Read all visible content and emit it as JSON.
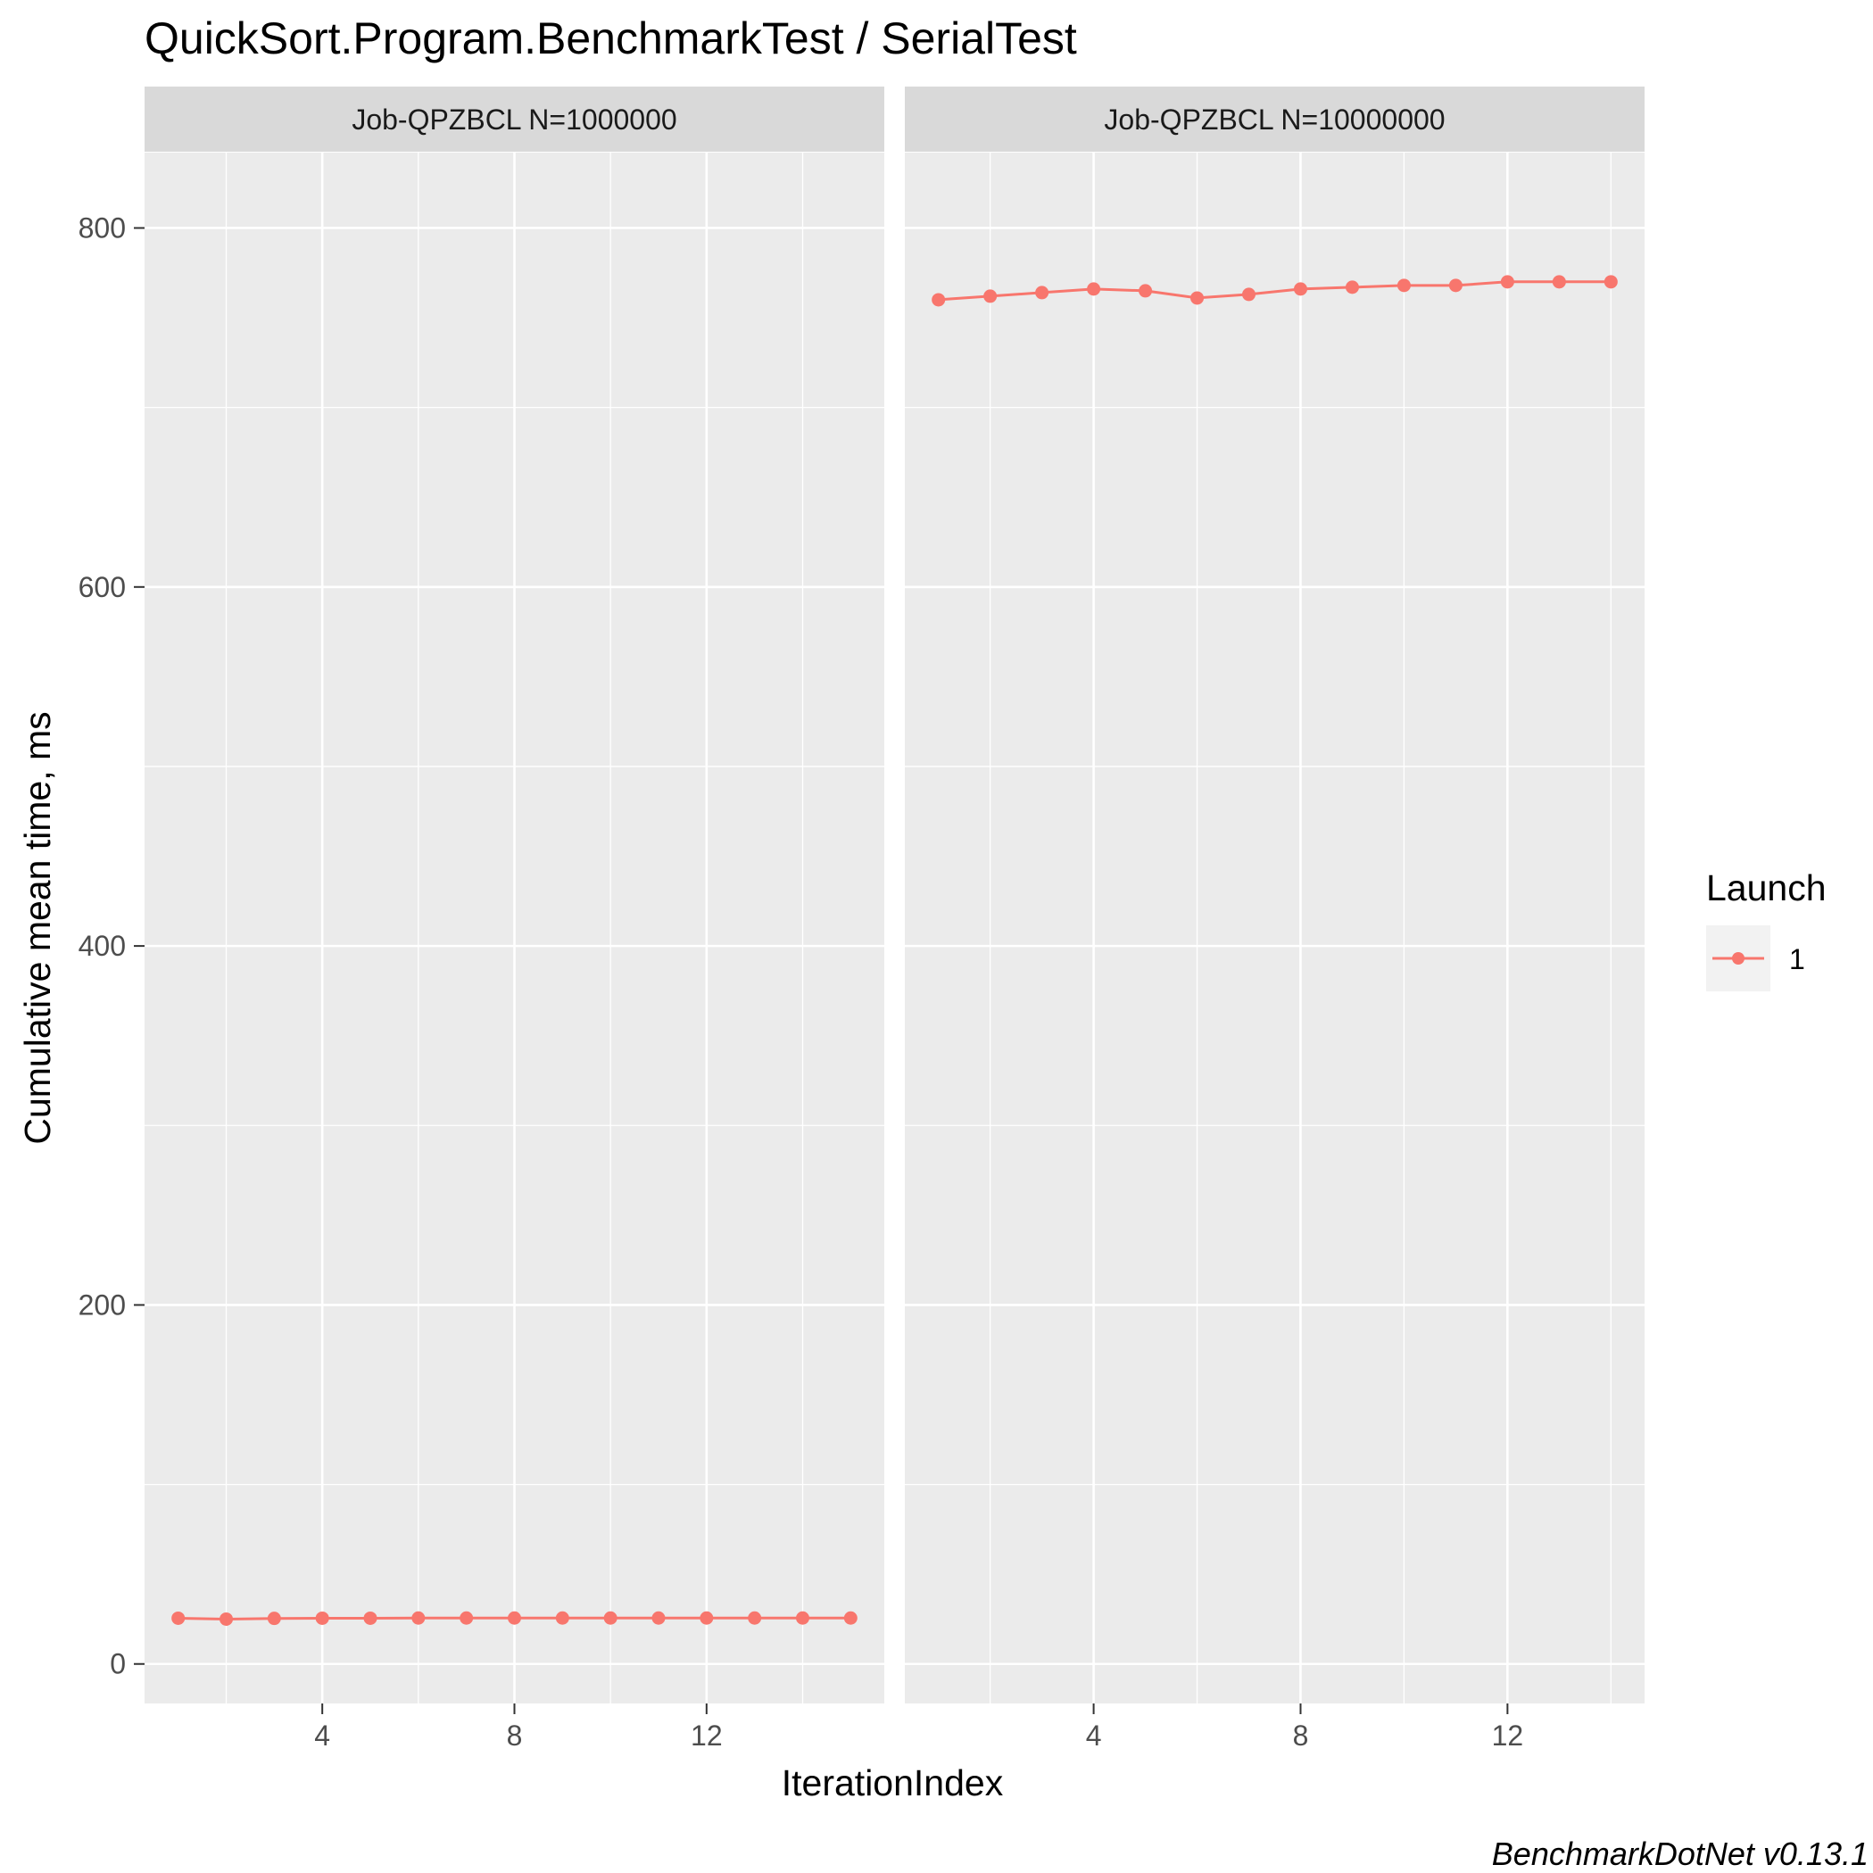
{
  "chart_data": {
    "type": "line",
    "title": "QuickSort.Program.BenchmarkTest / SerialTest",
    "xlabel": "IterationIndex",
    "ylabel": "Cumulative mean time, ms",
    "caption": "BenchmarkDotNet v0.13.1",
    "ylim": [
      -22,
      842
    ],
    "y_ticks": [
      0,
      200,
      400,
      600,
      800
    ],
    "x_ticks": [
      4,
      8,
      12
    ],
    "grid": true,
    "legend": {
      "title": "Launch",
      "position": "right",
      "entries": [
        {
          "label": "1",
          "color": "#F8766D"
        }
      ]
    },
    "panels": [
      {
        "strip": "Job-QPZBCL N=1000000",
        "xlim": [
          0.3,
          15.7
        ],
        "series": [
          {
            "name": "1",
            "color": "#F8766D",
            "x": [
              1,
              2,
              3,
              4,
              5,
              6,
              7,
              8,
              9,
              10,
              11,
              12,
              13,
              14,
              15
            ],
            "y": [
              25.5,
              25.0,
              25.4,
              25.5,
              25.5,
              25.6,
              25.6,
              25.6,
              25.6,
              25.6,
              25.6,
              25.6,
              25.6,
              25.6,
              25.6
            ]
          }
        ]
      },
      {
        "strip": "Job-QPZBCL N=10000000",
        "xlim": [
          0.35,
          14.65
        ],
        "series": [
          {
            "name": "1",
            "color": "#F8766D",
            "x": [
              1,
              2,
              3,
              4,
              5,
              6,
              7,
              8,
              9,
              10,
              11,
              12,
              13,
              14
            ],
            "y": [
              760,
              762,
              764,
              766,
              765,
              761,
              763,
              766,
              767,
              768,
              768,
              770,
              770,
              770
            ]
          }
        ]
      }
    ]
  }
}
